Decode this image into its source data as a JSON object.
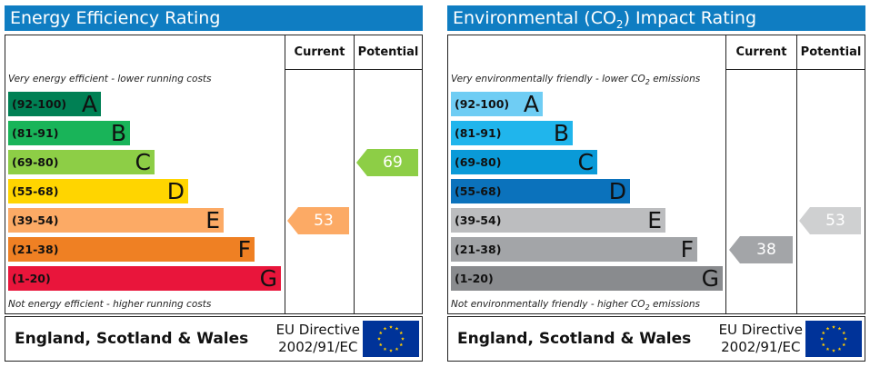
{
  "chart_data": [
    {
      "type": "bar",
      "title": "Energy Efficiency Rating",
      "columns": [
        "Current",
        "Potential"
      ],
      "top_note": "Very energy efficient - lower running costs",
      "bottom_note": "Not energy efficient - higher running costs",
      "bands": [
        {
          "range": "(92-100)",
          "letter": "A",
          "color": "#008054"
        },
        {
          "range": "(81-91)",
          "letter": "B",
          "color": "#19b459"
        },
        {
          "range": "(69-80)",
          "letter": "C",
          "color": "#8dce46"
        },
        {
          "range": "(55-68)",
          "letter": "D",
          "color": "#ffd500"
        },
        {
          "range": "(39-54)",
          "letter": "E",
          "color": "#fcaa65"
        },
        {
          "range": "(21-38)",
          "letter": "F",
          "color": "#ef8023"
        },
        {
          "range": "(1-20)",
          "letter": "G",
          "color": "#e9153b"
        }
      ],
      "current": {
        "value": 53,
        "label": "53",
        "band": "E",
        "color": "#fcaa65"
      },
      "potential": {
        "value": 69,
        "label": "69",
        "band": "C",
        "color": "#8dce46"
      },
      "footer": {
        "region": "England, Scotland & Wales",
        "directive_line1": "EU Directive",
        "directive_line2": "2002/91/EC"
      }
    },
    {
      "type": "bar",
      "title_prefix": "Environmental (CO",
      "title_sub": "2",
      "title_suffix": ") Impact Rating",
      "columns": [
        "Current",
        "Potential"
      ],
      "top_note_prefix": "Very environmentally friendly - lower CO",
      "top_note_sub": "2",
      "top_note_suffix": " emissions",
      "bottom_note_prefix": "Not environmentally friendly - higher CO",
      "bottom_note_sub": "2",
      "bottom_note_suffix": " emissions",
      "bands": [
        {
          "range": "(92-100)",
          "letter": "A",
          "color": "#6fcdf4"
        },
        {
          "range": "(81-91)",
          "letter": "B",
          "color": "#20b5ec"
        },
        {
          "range": "(69-80)",
          "letter": "C",
          "color": "#0a9ad8"
        },
        {
          "range": "(55-68)",
          "letter": "D",
          "color": "#0b72bc"
        },
        {
          "range": "(39-54)",
          "letter": "E",
          "color": "#bcbdbf"
        },
        {
          "range": "(21-38)",
          "letter": "F",
          "color": "#a3a5a8"
        },
        {
          "range": "(1-20)",
          "letter": "G",
          "color": "#898b8e"
        }
      ],
      "current": {
        "value": 38,
        "label": "38",
        "band": "F",
        "color": "#a3a5a8"
      },
      "potential": {
        "value": 53,
        "label": "53",
        "band": "E",
        "color": "#cfd0d1"
      },
      "footer": {
        "region": "England, Scotland & Wales",
        "directive_line1": "EU Directive",
        "directive_line2": "2002/91/EC"
      }
    }
  ],
  "flag": {
    "icon": "eu-flag-icon",
    "background": "#003399",
    "stars": "#ffcc00"
  }
}
